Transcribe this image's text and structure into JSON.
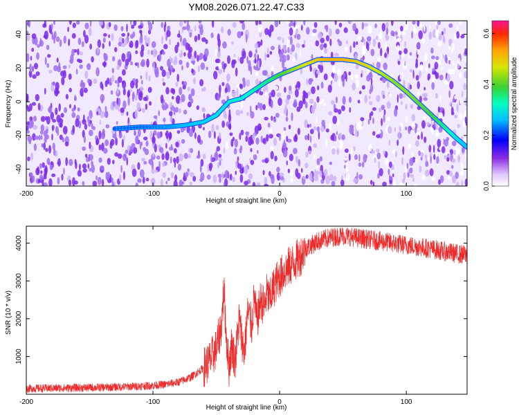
{
  "title": "YM08.2026.071.22.47.C33",
  "colors": {
    "snr_line": "#ee2a2a",
    "ridge_low": "#1e90ff",
    "ridge_high": "#32cd32",
    "background": "#ffffff"
  },
  "chart_data": [
    {
      "type": "heatmap",
      "name": "spectrogram",
      "xlabel": "Height of straight line (km)",
      "ylabel": "Frequency (Hz)",
      "xlim": [
        -200,
        148
      ],
      "ylim": [
        -50,
        48
      ],
      "xticks": [
        -200,
        -100,
        0,
        100
      ],
      "yticks": [
        -40,
        -20,
        0,
        20,
        40
      ],
      "colorbar": {
        "label": "Normalized spectral amplitude",
        "range": [
          0,
          0.65
        ],
        "ticks": [
          0.0,
          0.2,
          0.4,
          0.6
        ]
      },
      "ridge": {
        "x": [
          -130,
          -110,
          -90,
          -75,
          -60,
          -50,
          -40,
          -30,
          -20,
          -10,
          0,
          10,
          20,
          30,
          40,
          50,
          60,
          70,
          80,
          90,
          100,
          110,
          120,
          130,
          140,
          148
        ],
        "y": [
          -16,
          -15,
          -15,
          -14,
          -12,
          -8,
          0,
          2,
          7,
          12,
          16,
          19,
          22,
          25,
          25,
          25,
          24,
          21,
          17,
          12,
          6,
          -1,
          -8,
          -15,
          -22,
          -27
        ],
        "amplitude": [
          0.22,
          0.22,
          0.24,
          0.26,
          0.28,
          0.3,
          0.3,
          0.32,
          0.34,
          0.36,
          0.4,
          0.44,
          0.47,
          0.5,
          0.52,
          0.52,
          0.5,
          0.48,
          0.46,
          0.44,
          0.44,
          0.42,
          0.4,
          0.36,
          0.3,
          0.26
        ]
      }
    },
    {
      "type": "line",
      "name": "snr",
      "xlabel": "Height of straight line (km)",
      "ylabel": "SNR (10 * v/v)",
      "xlim": [
        -200,
        148
      ],
      "ylim": [
        0,
        4450
      ],
      "xticks": [
        -200,
        -100,
        0,
        100
      ],
      "yticks": [
        1000,
        2000,
        3000,
        4000
      ],
      "series": [
        {
          "name": "SNR",
          "x": [
            -200,
            -180,
            -160,
            -140,
            -120,
            -100,
            -90,
            -80,
            -70,
            -60,
            -55,
            -50,
            -46,
            -44,
            -42,
            -40,
            -38,
            -35,
            -32,
            -30,
            -28,
            -25,
            -22,
            -20,
            -18,
            -15,
            -12,
            -10,
            -8,
            -5,
            -2,
            0,
            5,
            10,
            15,
            20,
            25,
            30,
            40,
            50,
            60,
            70,
            80,
            90,
            100,
            110,
            120,
            130,
            140,
            148
          ],
          "y": [
            150,
            160,
            170,
            180,
            200,
            230,
            260,
            320,
            450,
            700,
            900,
            1200,
            1800,
            2800,
            1500,
            700,
            1300,
            900,
            2000,
            1500,
            1100,
            2200,
            1800,
            2600,
            1900,
            2500,
            2300,
            2700,
            2500,
            2800,
            3000,
            3100,
            3300,
            3450,
            3600,
            3850,
            3950,
            4050,
            4150,
            4200,
            4150,
            4100,
            4050,
            4000,
            3950,
            3900,
            3850,
            3780,
            3720,
            3680
          ]
        }
      ]
    }
  ]
}
